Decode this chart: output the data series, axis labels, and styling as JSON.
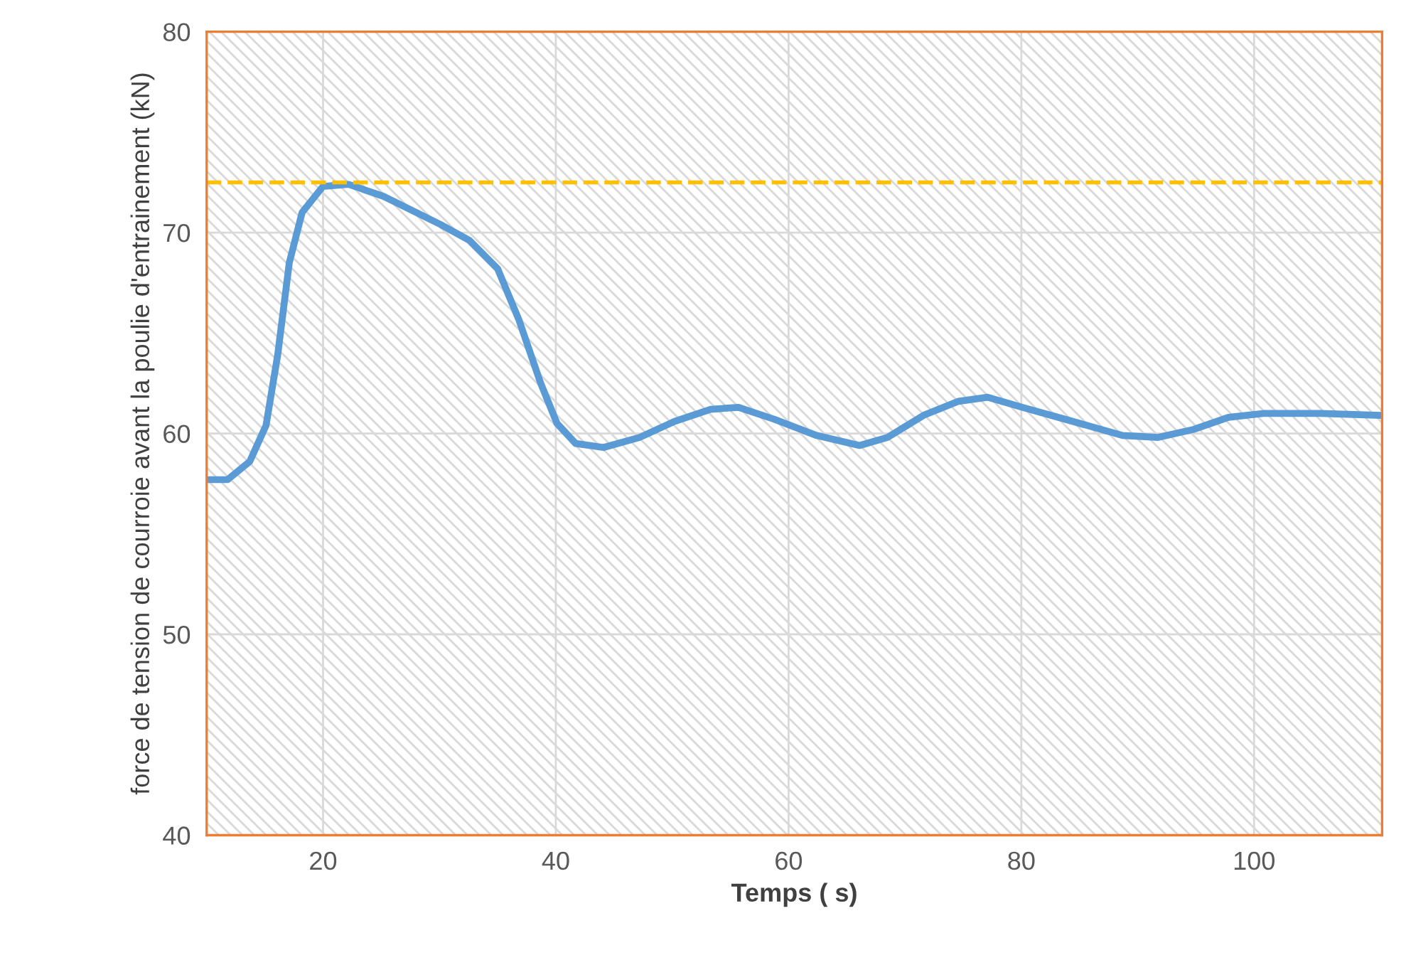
{
  "chart_data": {
    "type": "line",
    "xlabel": "Temps ( s)",
    "ylabel": "force de tension de courroie avant la poulie d'entrainement (kN)",
    "x": [
      10,
      11.8,
      13.7,
      15.1,
      16.1,
      17.1,
      18.2,
      20,
      22.2,
      25.2,
      30.1,
      32.6,
      35,
      36.8,
      38.7,
      40.1,
      41.7,
      44.1,
      47.2,
      50.2,
      53.3,
      55.7,
      58.8,
      62.4,
      66.1,
      68.5,
      71.6,
      74.6,
      77.1,
      80.1,
      83.8,
      88.7,
      91.7,
      94.8,
      97.8,
      100.9,
      105.7,
      110.9
    ],
    "series": [
      {
        "color": "#5b9bd5",
        "values": [
          57.7,
          57.7,
          58.6,
          60.4,
          63.9,
          68.5,
          71.0,
          72.3,
          72.4,
          71.8,
          70.4,
          69.6,
          68.2,
          65.7,
          62.5,
          60.5,
          59.5,
          59.3,
          59.8,
          60.6,
          61.2,
          61.3,
          60.7,
          59.9,
          59.4,
          59.8,
          60.9,
          61.6,
          61.8,
          61.3,
          60.7,
          59.9,
          59.8,
          60.2,
          60.8,
          61.0,
          61.0,
          60.9
        ]
      }
    ],
    "ref_lines": [
      {
        "axis": "y",
        "value": 72.5,
        "color": "#ffc000",
        "line_style": "dashed"
      }
    ],
    "xlim": [
      10,
      111
    ],
    "ylim": [
      40,
      80
    ],
    "xticks": [
      20,
      40,
      60,
      80,
      100
    ],
    "yticks": [
      40,
      50,
      60,
      70,
      80
    ],
    "grid": true,
    "legend": false,
    "marker": "none",
    "line_style": "solid"
  }
}
